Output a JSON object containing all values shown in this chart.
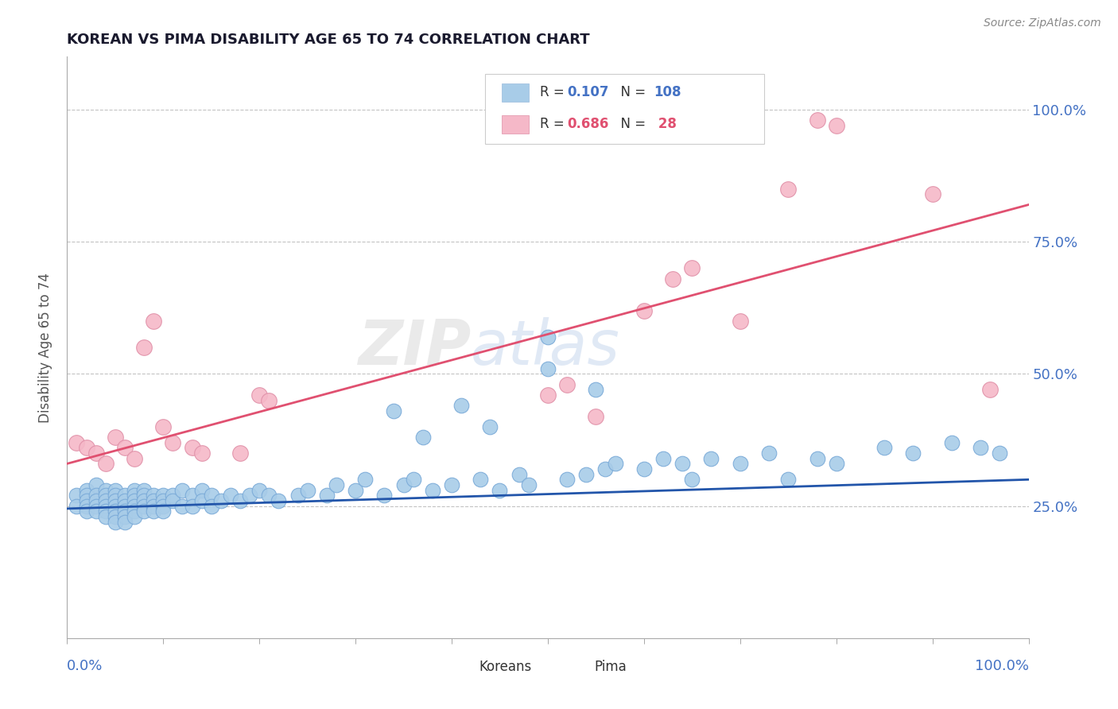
{
  "title": "KOREAN VS PIMA DISABILITY AGE 65 TO 74 CORRELATION CHART",
  "source": "Source: ZipAtlas.com",
  "ylabel": "Disability Age 65 to 74",
  "xlim": [
    0.0,
    1.0
  ],
  "ylim": [
    0.0,
    1.1
  ],
  "ytick_labels": [
    "25.0%",
    "50.0%",
    "75.0%",
    "100.0%"
  ],
  "ytick_positions": [
    0.25,
    0.5,
    0.75,
    1.0
  ],
  "blue_color": "#a8cce8",
  "pink_color": "#f5b8c8",
  "blue_line_color": "#2255aa",
  "pink_line_color": "#e05070",
  "blue_R": 0.107,
  "pink_R": 0.686,
  "blue_N": 108,
  "pink_N": 28,
  "watermark_zip": "ZIP",
  "watermark_atlas": "atlas",
  "blue_scatter_x": [
    0.01,
    0.01,
    0.02,
    0.02,
    0.02,
    0.02,
    0.02,
    0.03,
    0.03,
    0.03,
    0.03,
    0.03,
    0.04,
    0.04,
    0.04,
    0.04,
    0.04,
    0.04,
    0.05,
    0.05,
    0.05,
    0.05,
    0.05,
    0.05,
    0.05,
    0.06,
    0.06,
    0.06,
    0.06,
    0.06,
    0.06,
    0.07,
    0.07,
    0.07,
    0.07,
    0.07,
    0.07,
    0.08,
    0.08,
    0.08,
    0.08,
    0.08,
    0.09,
    0.09,
    0.09,
    0.09,
    0.1,
    0.1,
    0.1,
    0.1,
    0.11,
    0.11,
    0.12,
    0.12,
    0.13,
    0.13,
    0.14,
    0.14,
    0.15,
    0.15,
    0.16,
    0.17,
    0.18,
    0.19,
    0.2,
    0.21,
    0.22,
    0.24,
    0.25,
    0.27,
    0.28,
    0.3,
    0.31,
    0.33,
    0.35,
    0.36,
    0.38,
    0.4,
    0.43,
    0.45,
    0.47,
    0.48,
    0.5,
    0.52,
    0.54,
    0.56,
    0.57,
    0.6,
    0.62,
    0.64,
    0.65,
    0.67,
    0.7,
    0.73,
    0.75,
    0.78,
    0.8,
    0.85,
    0.88,
    0.92,
    0.95,
    0.97,
    0.34,
    0.37,
    0.41,
    0.44,
    0.5,
    0.55
  ],
  "blue_scatter_y": [
    0.27,
    0.25,
    0.28,
    0.27,
    0.26,
    0.25,
    0.24,
    0.29,
    0.27,
    0.26,
    0.25,
    0.24,
    0.28,
    0.27,
    0.26,
    0.25,
    0.24,
    0.23,
    0.28,
    0.27,
    0.26,
    0.25,
    0.24,
    0.23,
    0.22,
    0.27,
    0.26,
    0.25,
    0.24,
    0.23,
    0.22,
    0.28,
    0.27,
    0.26,
    0.25,
    0.24,
    0.23,
    0.28,
    0.27,
    0.26,
    0.25,
    0.24,
    0.27,
    0.26,
    0.25,
    0.24,
    0.27,
    0.26,
    0.25,
    0.24,
    0.27,
    0.26,
    0.28,
    0.25,
    0.27,
    0.25,
    0.28,
    0.26,
    0.27,
    0.25,
    0.26,
    0.27,
    0.26,
    0.27,
    0.28,
    0.27,
    0.26,
    0.27,
    0.28,
    0.27,
    0.29,
    0.28,
    0.3,
    0.27,
    0.29,
    0.3,
    0.28,
    0.29,
    0.3,
    0.28,
    0.31,
    0.29,
    0.51,
    0.3,
    0.31,
    0.32,
    0.33,
    0.32,
    0.34,
    0.33,
    0.3,
    0.34,
    0.33,
    0.35,
    0.3,
    0.34,
    0.33,
    0.36,
    0.35,
    0.37,
    0.36,
    0.35,
    0.43,
    0.38,
    0.44,
    0.4,
    0.57,
    0.47
  ],
  "pink_scatter_x": [
    0.01,
    0.02,
    0.03,
    0.04,
    0.05,
    0.06,
    0.07,
    0.08,
    0.09,
    0.1,
    0.11,
    0.13,
    0.14,
    0.18,
    0.2,
    0.21,
    0.5,
    0.52,
    0.55,
    0.6,
    0.63,
    0.65,
    0.7,
    0.75,
    0.78,
    0.8,
    0.9,
    0.96
  ],
  "pink_scatter_y": [
    0.37,
    0.36,
    0.35,
    0.33,
    0.38,
    0.36,
    0.34,
    0.55,
    0.6,
    0.4,
    0.37,
    0.36,
    0.35,
    0.35,
    0.46,
    0.45,
    0.46,
    0.48,
    0.42,
    0.62,
    0.68,
    0.7,
    0.6,
    0.85,
    0.98,
    0.97,
    0.84,
    0.47
  ],
  "blue_trend_x": [
    0.0,
    1.0
  ],
  "blue_trend_y": [
    0.245,
    0.3
  ],
  "pink_trend_x": [
    0.0,
    1.0
  ],
  "pink_trend_y": [
    0.33,
    0.82
  ]
}
